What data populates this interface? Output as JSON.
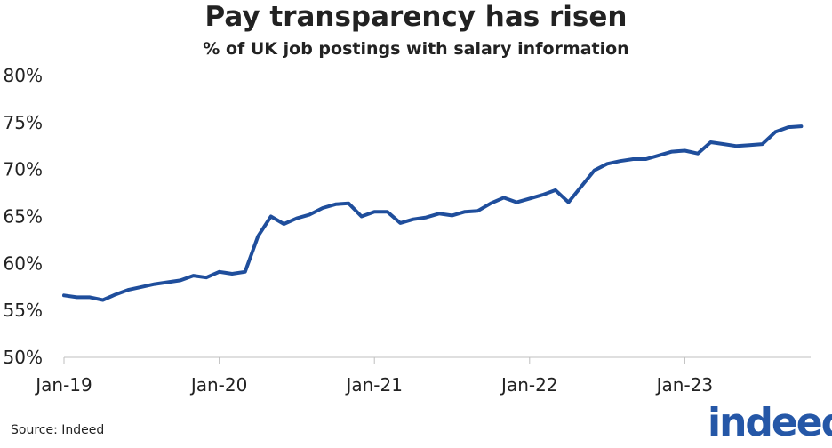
{
  "title": "Pay transparency has risen",
  "subtitle": "% of UK job postings with salary information",
  "source": "Source: Indeed",
  "logo_text": "indeed",
  "colors": {
    "line": "#1f4e9c",
    "logo": "#2557a7",
    "axis": "#bfbfbf"
  },
  "chart_data": {
    "type": "line",
    "title": "Pay transparency has risen",
    "subtitle": "% of UK job postings with salary information",
    "xlabel": "",
    "ylabel": "",
    "ylim": [
      50,
      80
    ],
    "yticks": [
      "50%",
      "55%",
      "60%",
      "65%",
      "70%",
      "75%",
      "80%"
    ],
    "ytick_values": [
      50,
      55,
      60,
      65,
      70,
      75,
      80
    ],
    "xticks": [
      "Jan-19",
      "Jan-20",
      "Jan-21",
      "Jan-22",
      "Jan-23"
    ],
    "xtick_values": [
      "2019-01",
      "2020-01",
      "2021-01",
      "2022-01",
      "2023-01"
    ],
    "grid": false,
    "legend": "none",
    "series": [
      {
        "x": [
          "2019-01",
          "2019-02",
          "2019-03",
          "2019-04",
          "2019-05",
          "2019-06",
          "2019-07",
          "2019-08",
          "2019-09",
          "2019-10",
          "2019-11",
          "2019-12",
          "2020-01",
          "2020-02",
          "2020-03",
          "2020-04",
          "2020-05",
          "2020-06",
          "2020-07",
          "2020-08",
          "2020-09",
          "2020-10",
          "2020-11",
          "2020-12",
          "2021-01",
          "2021-02",
          "2021-03",
          "2021-04",
          "2021-05",
          "2021-06",
          "2021-07",
          "2021-08",
          "2021-09",
          "2021-10",
          "2021-11",
          "2021-12",
          "2022-01",
          "2022-02",
          "2022-03",
          "2022-04",
          "2022-05",
          "2022-06",
          "2022-07",
          "2022-08",
          "2022-09",
          "2022-10",
          "2022-11",
          "2022-12",
          "2023-01",
          "2023-02",
          "2023-03",
          "2023-04",
          "2023-05",
          "2023-06",
          "2023-07",
          "2023-08",
          "2023-09",
          "2023-10"
        ],
        "values": [
          56.6,
          56.4,
          56.4,
          56.1,
          56.7,
          57.2,
          57.5,
          57.8,
          58.0,
          58.2,
          58.7,
          58.5,
          59.1,
          58.9,
          59.1,
          62.9,
          65.0,
          64.2,
          64.8,
          65.2,
          65.9,
          66.3,
          66.4,
          65.0,
          65.5,
          65.5,
          64.3,
          64.7,
          64.9,
          65.3,
          65.1,
          65.5,
          65.6,
          66.4,
          67.0,
          66.5,
          66.9,
          67.3,
          67.8,
          66.5,
          68.2,
          69.9,
          70.6,
          70.9,
          71.1,
          71.1,
          71.5,
          71.9,
          72.0,
          71.7,
          72.9,
          72.7,
          72.5,
          72.6,
          72.7,
          74.0,
          74.5,
          74.6
        ]
      }
    ]
  }
}
